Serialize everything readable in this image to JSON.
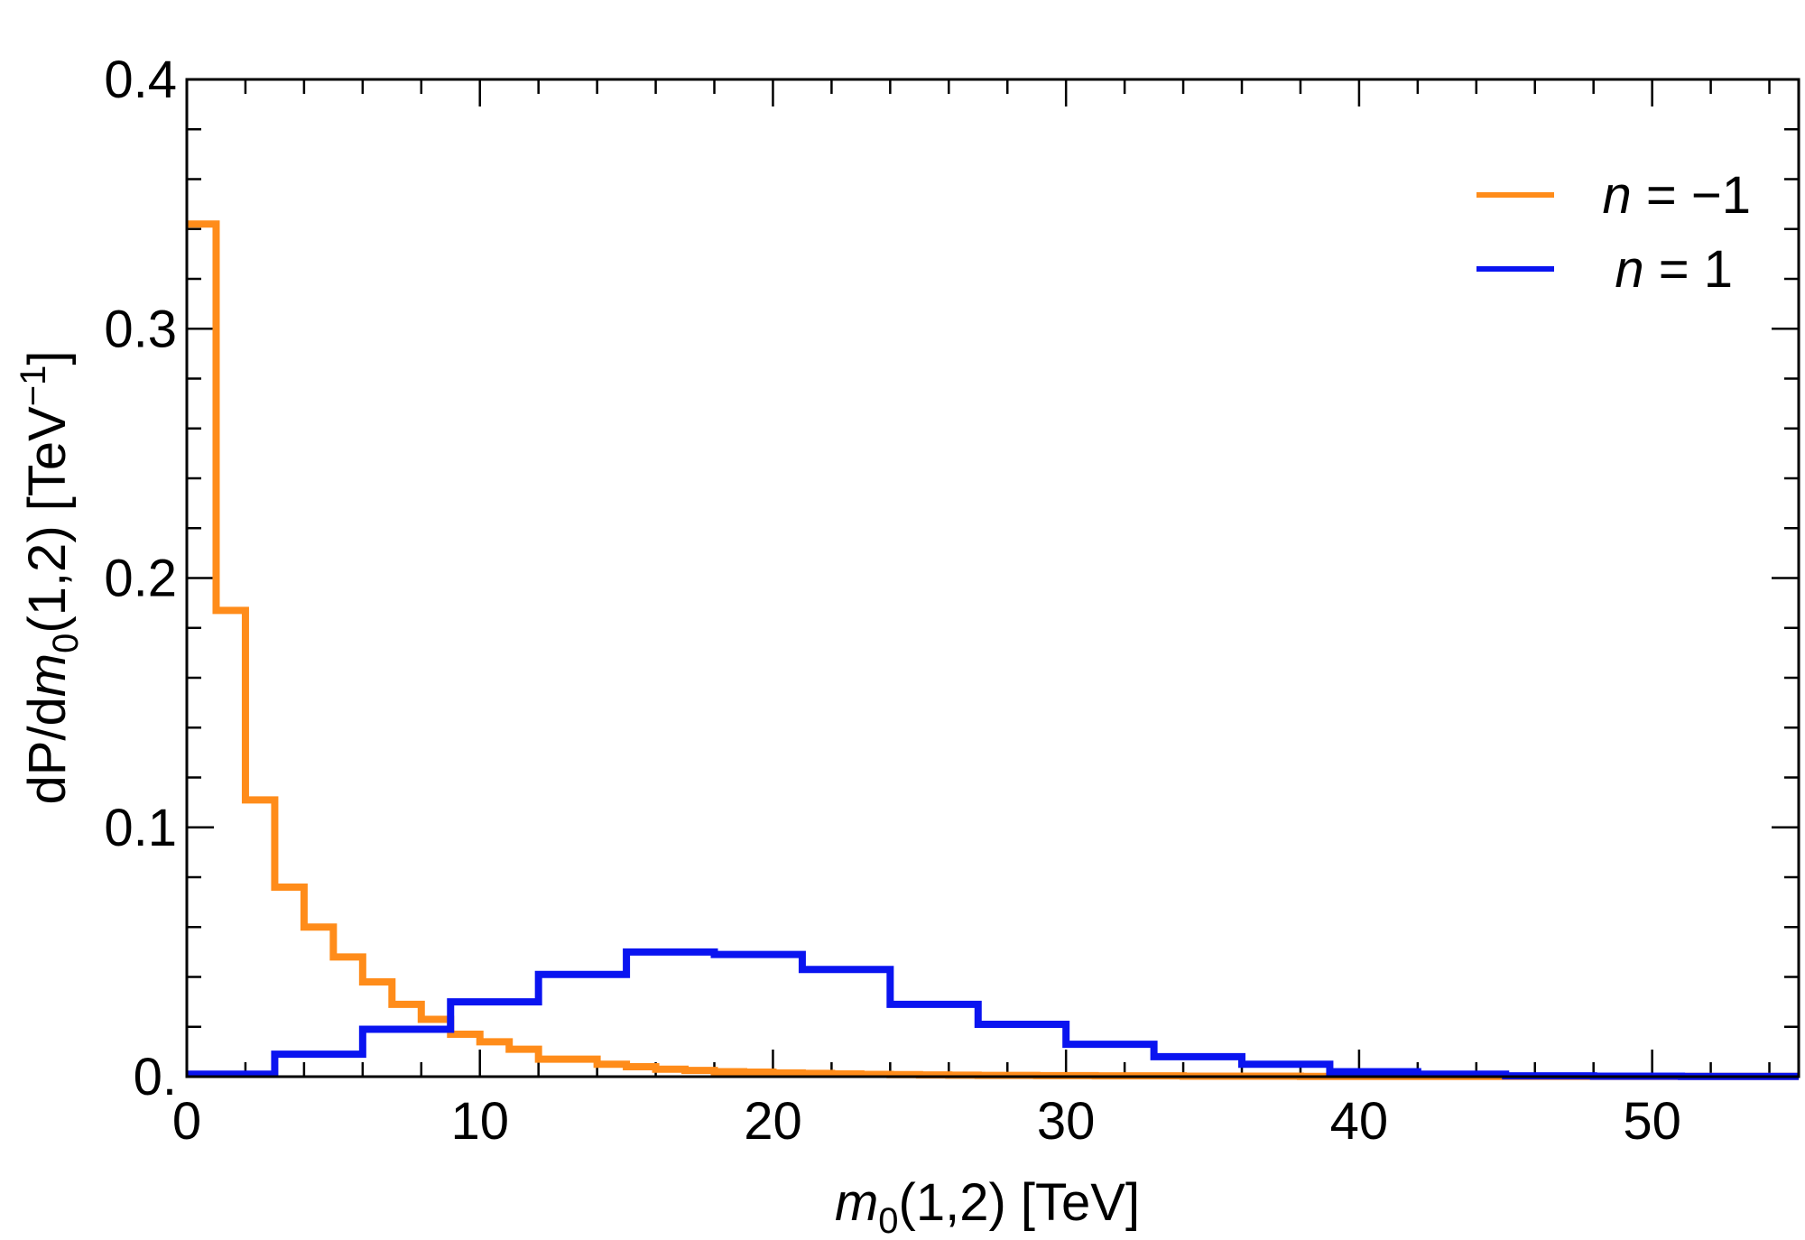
{
  "chart_data": {
    "type": "histogram",
    "xlabel": {
      "var": "m",
      "sub": "0",
      "rest": "(1,2) [TeV]"
    },
    "ylabel": {
      "pre": "dP/d",
      "var": "m",
      "sub": "0",
      "mid": "(1,2) [TeV",
      "sup": "−1",
      "post": "]"
    },
    "xlim": [
      0,
      55
    ],
    "ylim": [
      0,
      0.4
    ],
    "x_ticks": [
      0,
      10,
      20,
      30,
      40,
      50
    ],
    "x_tick_labels": [
      "0",
      "10",
      "20",
      "30",
      "40",
      "50"
    ],
    "y_ticks": [
      0,
      0.1,
      0.2,
      0.3,
      0.4
    ],
    "y_tick_labels": [
      "0.",
      "0.1",
      "0.2",
      "0.3",
      "0.4"
    ],
    "legend_position": "top-right",
    "series": [
      {
        "name": "n = −1",
        "legend_var": "n",
        "legend_rest": " = −1",
        "color": "#ff8c1a",
        "bin_edges": [
          0,
          1,
          2,
          3,
          4,
          5,
          6,
          7,
          8,
          9,
          10,
          11,
          12,
          13,
          14,
          15,
          16,
          17,
          18,
          19,
          20,
          21,
          22,
          23,
          24,
          25,
          26,
          27,
          28,
          29,
          30,
          31,
          32,
          33,
          34,
          35,
          36,
          37,
          38,
          39,
          40,
          55
        ],
        "values": [
          0.342,
          0.187,
          0.111,
          0.076,
          0.06,
          0.048,
          0.038,
          0.029,
          0.023,
          0.017,
          0.014,
          0.011,
          0.007,
          0.007,
          0.005,
          0.004,
          0.003,
          0.0025,
          0.002,
          0.0018,
          0.0015,
          0.0013,
          0.0011,
          0.0009,
          0.0008,
          0.0007,
          0.0006,
          0.0005,
          0.0005,
          0.0004,
          0.0004,
          0.0003,
          0.0003,
          0.0003,
          0.0002,
          0.0002,
          0.0002,
          0.0002,
          0.0001,
          0.0001,
          0.0001
        ]
      },
      {
        "name": "n = 1",
        "legend_var": "n",
        "legend_rest": " = 1",
        "color": "#0a14f0",
        "bin_edges": [
          0,
          3,
          6,
          9,
          12,
          15,
          18,
          21,
          24,
          27,
          30,
          33,
          36,
          39,
          42,
          45,
          48,
          51,
          55
        ],
        "values": [
          0.001,
          0.009,
          0.019,
          0.03,
          0.041,
          0.05,
          0.049,
          0.043,
          0.029,
          0.021,
          0.013,
          0.008,
          0.005,
          0.002,
          0.001,
          0.0003,
          0.0002,
          0.0001
        ]
      }
    ]
  }
}
